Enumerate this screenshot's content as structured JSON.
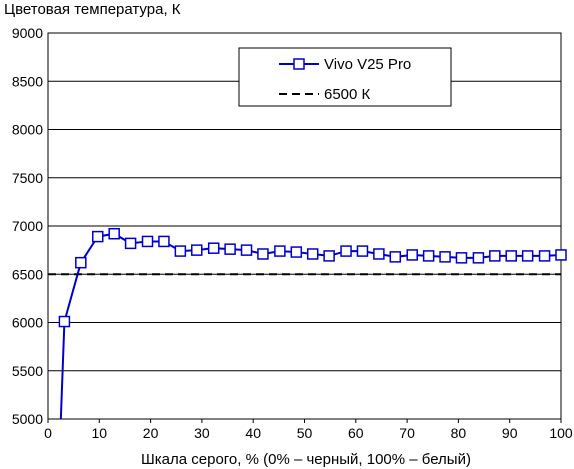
{
  "chart_data": {
    "type": "line",
    "title": "Цветовая температура, К",
    "xlabel": "Шкала серого, % (0% – черный, 100% – белый)",
    "ylabel": "",
    "xlim": [
      0,
      100
    ],
    "ylim": [
      5000,
      9000
    ],
    "x_ticks": [
      "0",
      "10",
      "20",
      "30",
      "40",
      "50",
      "60",
      "70",
      "80",
      "90",
      "100"
    ],
    "y_ticks": [
      "5000",
      "5500",
      "6000",
      "6500",
      "7000",
      "7500",
      "8000",
      "8500",
      "9000"
    ],
    "grid": true,
    "legend_placement": "top-center",
    "series": [
      {
        "name": "Vivo V25 Pro",
        "color": "#0000cc",
        "marker": "square",
        "x": [
          2.5,
          3.2,
          6.4,
          9.7,
          12.9,
          16.1,
          19.4,
          22.6,
          25.8,
          29.0,
          32.3,
          35.5,
          38.7,
          41.9,
          45.2,
          48.4,
          51.6,
          54.8,
          58.1,
          61.3,
          64.5,
          67.7,
          71.0,
          74.2,
          77.4,
          80.6,
          83.9,
          87.1,
          90.3,
          93.5,
          96.8,
          100
        ],
        "y": [
          5000,
          6010,
          6620,
          6890,
          6920,
          6820,
          6840,
          6840,
          6740,
          6750,
          6770,
          6760,
          6750,
          6710,
          6740,
          6730,
          6710,
          6690,
          6740,
          6740,
          6710,
          6680,
          6700,
          6690,
          6680,
          6670,
          6670,
          6690,
          6690,
          6690,
          6690,
          6700
        ]
      },
      {
        "name": "6500 К",
        "color": "#000000",
        "dash": "dashed",
        "x": [
          0,
          100
        ],
        "y": [
          6500,
          6500
        ]
      }
    ]
  }
}
